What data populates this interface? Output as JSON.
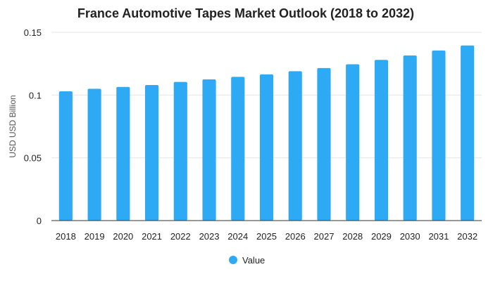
{
  "chart_data": {
    "type": "bar",
    "title": "France Automotive Tapes Market Outlook (2018 to 2032)",
    "xlabel": "",
    "ylabel": "USD USD Billion",
    "categories": [
      "2018",
      "2019",
      "2020",
      "2021",
      "2022",
      "2023",
      "2024",
      "2025",
      "2026",
      "2027",
      "2028",
      "2029",
      "2030",
      "2031",
      "2032"
    ],
    "series": [
      {
        "name": "Value",
        "color": "#2eaaf5",
        "values": [
          0.103,
          0.105,
          0.1065,
          0.108,
          0.1105,
          0.1125,
          0.1145,
          0.1165,
          0.119,
          0.1215,
          0.1245,
          0.128,
          0.1315,
          0.1355,
          0.1395
        ]
      }
    ],
    "ylim": [
      0,
      0.15
    ],
    "yticks": [
      "0",
      "0.05",
      "0.1",
      "0.15"
    ],
    "ytick_values": [
      0,
      0.05,
      0.1,
      0.15
    ],
    "grid": true,
    "legend_position": "bottom-center"
  }
}
